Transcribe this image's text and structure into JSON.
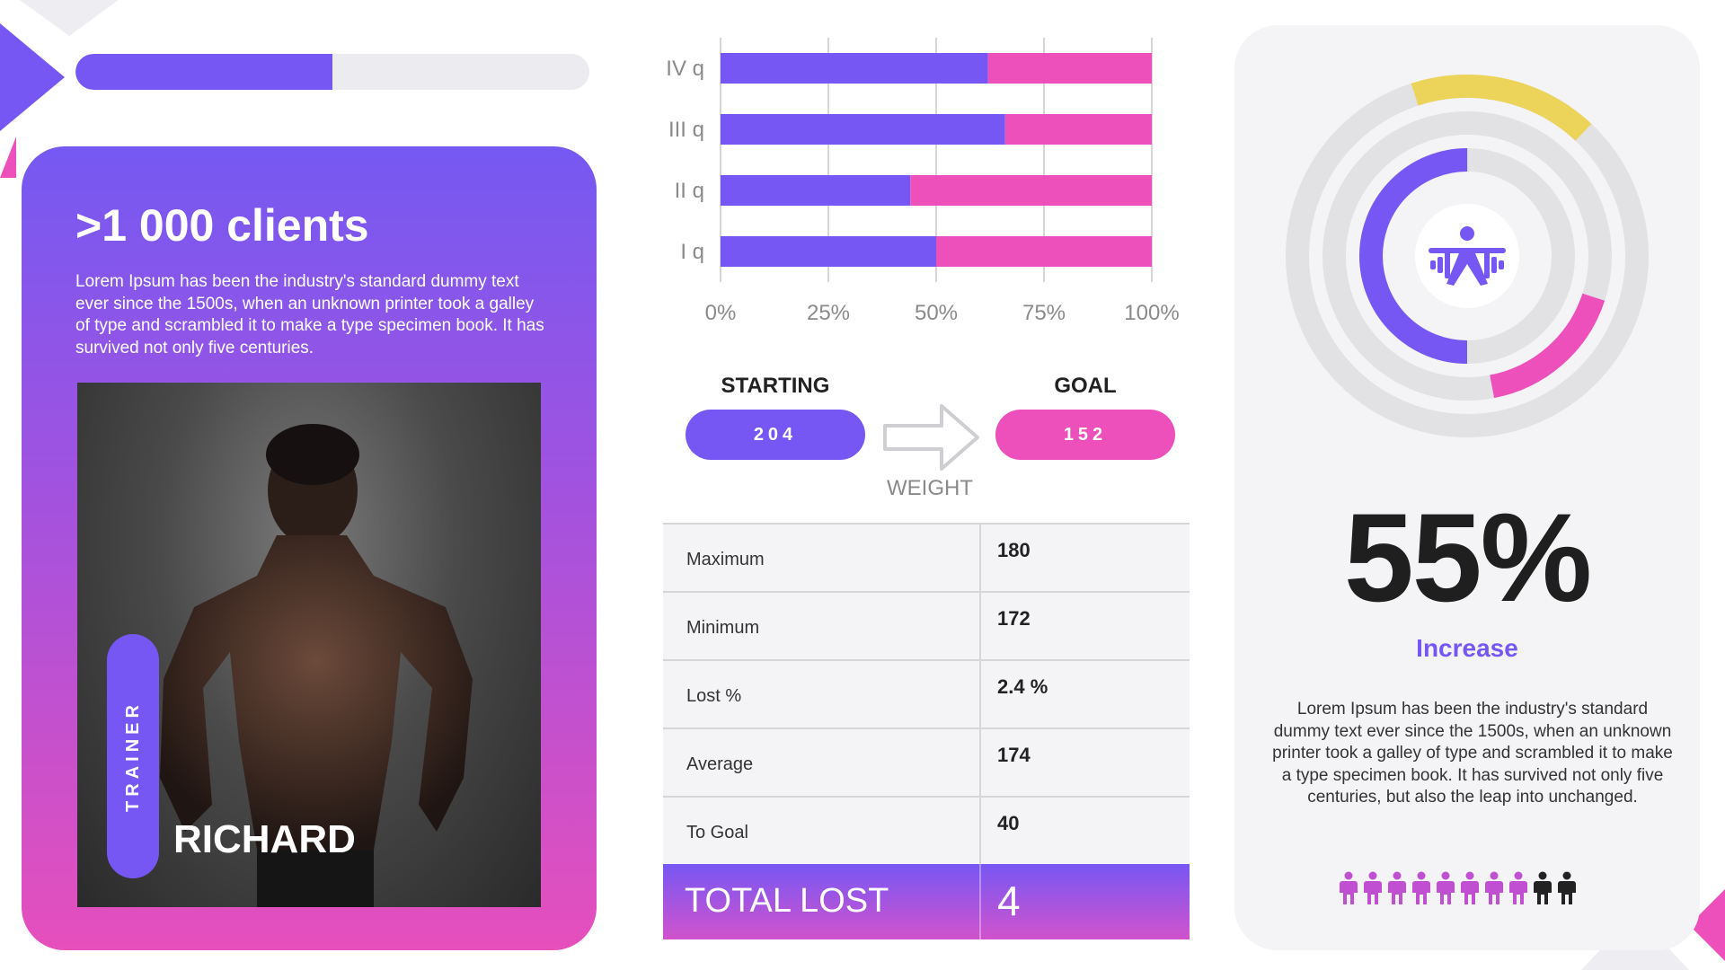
{
  "progress": {
    "value_percent": 50
  },
  "clients": {
    "title": ">1 000 clients",
    "text": "Lorem Ipsum has been the industry's standard dummy text ever since the 1500s, when an unknown printer took a galley of type and scrambled it to make a type specimen book. It has survived not only five centuries."
  },
  "trainer": {
    "label": "TRAINER",
    "name": "RICHARD"
  },
  "colors": {
    "purple": "#7757f4",
    "pink": "#ed50bb",
    "yellow": "#ecd45a",
    "grey": "#e2e2e5"
  },
  "chart_data": {
    "type": "bar",
    "orientation": "horizontal",
    "stacked": true,
    "categories": [
      "IV q",
      "III q",
      "II q",
      "I q"
    ],
    "series": [
      {
        "color": "#7757f4",
        "values": [
          62,
          66,
          44,
          50
        ]
      },
      {
        "color": "#ed50bb",
        "values": [
          38,
          34,
          56,
          50
        ]
      }
    ],
    "x_ticks": [
      "0%",
      "25%",
      "50%",
      "75%",
      "100%"
    ],
    "xlim": [
      0,
      100
    ],
    "grid": true
  },
  "weight": {
    "starting_label": "STARTING",
    "starting_value": "204",
    "goal_label": "GOAL",
    "goal_value": "152",
    "arrow_label": "WEIGHT"
  },
  "stats": {
    "rows": [
      {
        "label": "Maximum",
        "value": "180"
      },
      {
        "label": "Minimum",
        "value": "172"
      },
      {
        "label": "Lost %",
        "value": "2.4 %"
      },
      {
        "label": "Average",
        "value": "174"
      },
      {
        "label": "To Goal",
        "value": "40"
      }
    ],
    "total_label": "TOTAL LOST",
    "total_value": "4"
  },
  "right": {
    "ring_progress": [
      {
        "ring": "inner",
        "color": "#7757f4",
        "fraction": 0.5
      },
      {
        "ring": "middle",
        "color": "#ed50bb",
        "fraction": 0.17
      },
      {
        "ring": "outer",
        "color": "#ecd45a",
        "fraction": 0.17
      }
    ],
    "center_icon": "weightlifter-icon",
    "percent": "55%",
    "percent_caption": "Increase",
    "text": "Lorem Ipsum has been the industry's standard dummy text ever since the 1500s, when an unknown printer took a galley of type and scrambled it to make a type specimen book. It has survived not only five centuries, but also the leap into unchanged.",
    "people": {
      "total": 10,
      "highlighted": 8,
      "icon": "person-icon",
      "highlight_color": "#c04fd2",
      "other_color": "#222222"
    }
  }
}
